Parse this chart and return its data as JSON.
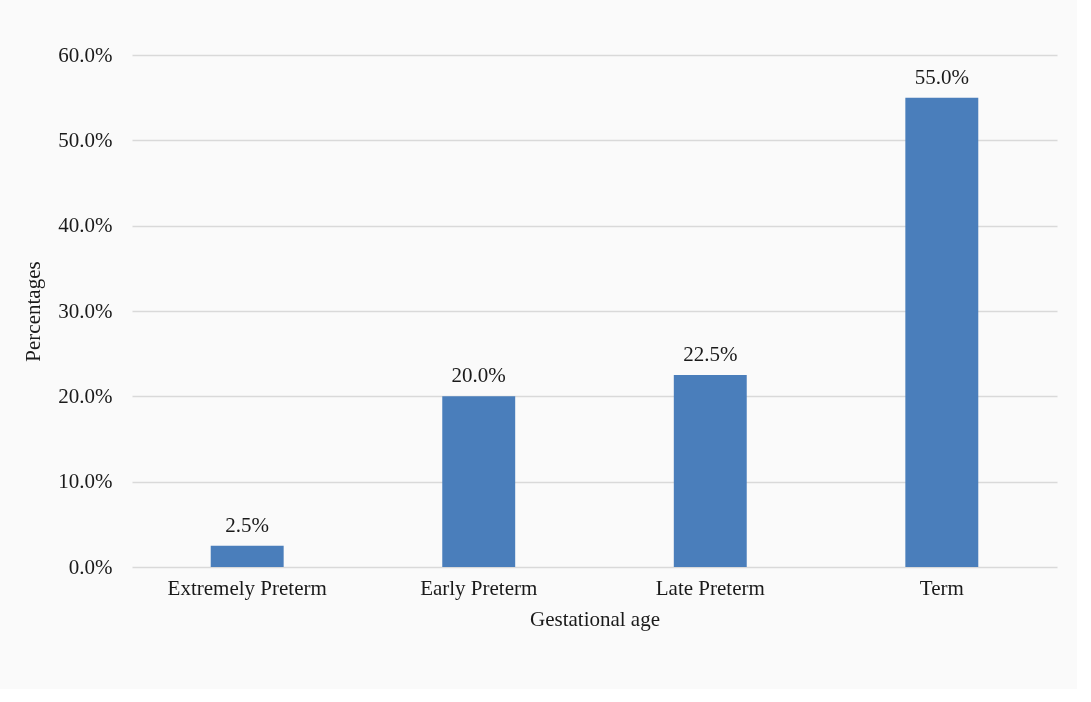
{
  "chart_data": {
    "type": "bar",
    "xlabel": "Gestational age",
    "ylabel": "Percentages",
    "categories": [
      "Extremely Preterm",
      "Early Preterm",
      "Late Preterm",
      "Term"
    ],
    "values": [
      2.5,
      20.0,
      22.5,
      55.0
    ],
    "color": "#4a7ebb",
    "value_labels": [
      "2.5%",
      "20.0%",
      "22.5%",
      "55.0%"
    ],
    "ylim": [
      0,
      60
    ],
    "yticks": [
      {
        "value": 0,
        "label": "0.0%"
      },
      {
        "value": 10,
        "label": "10.0%"
      },
      {
        "value": 20,
        "label": "20.0%"
      },
      {
        "value": 30,
        "label": "30.0%"
      },
      {
        "value": 40,
        "label": "40.0%"
      },
      {
        "value": 50,
        "label": "50.0%"
      },
      {
        "value": 60,
        "label": "60.0%"
      }
    ],
    "grid": "y"
  }
}
